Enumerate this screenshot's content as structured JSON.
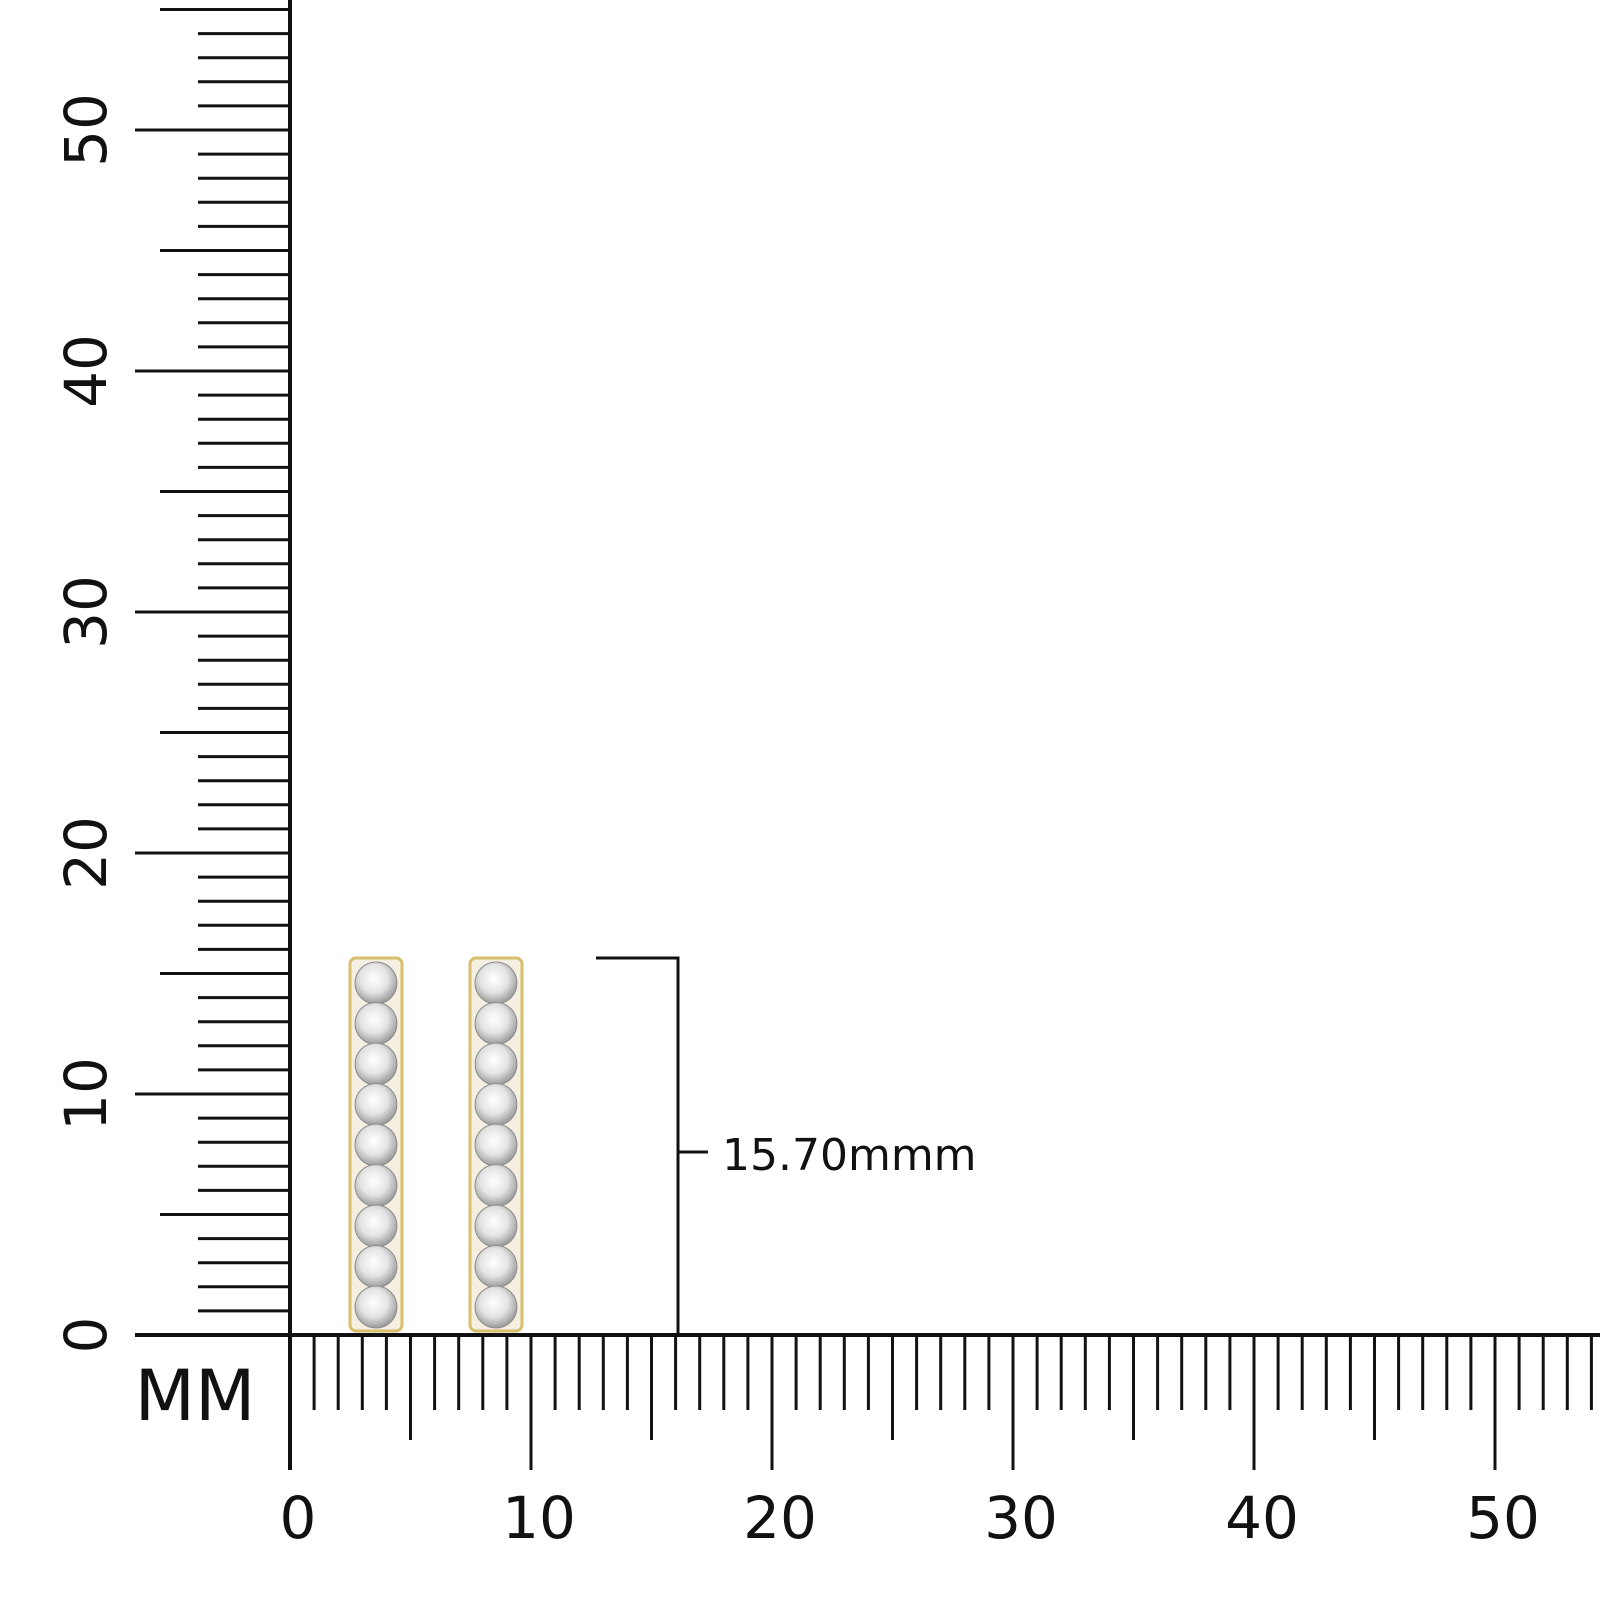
{
  "ruler": {
    "unit": "MM",
    "x_labels": [
      0,
      10,
      20,
      30,
      40,
      50
    ],
    "y_labels": [
      0,
      10,
      20,
      30,
      40,
      50
    ]
  },
  "dimension": {
    "label": "15.70mmm"
  }
}
